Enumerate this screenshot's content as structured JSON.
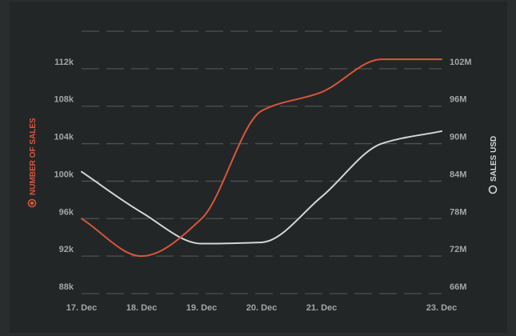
{
  "colors": {
    "background": "#232627",
    "outer": "#2a2d2e",
    "grid": "#4d5152",
    "tick_text": "#a3a6a7",
    "sales_count": "#d9553b",
    "sales_usd": "#d5d5d5"
  },
  "chart_data": {
    "type": "line",
    "x_tick_labels": [
      "17. Dec",
      "18. Dec",
      "19. Dec",
      "20. Dec",
      "21. Dec",
      "23. Dec"
    ],
    "x_tick_days": [
      0,
      1,
      2,
      3,
      4,
      6
    ],
    "y_left": {
      "title": "NUMBER OF SALES",
      "ticks": [
        "88k",
        "92k",
        "96k",
        "100k",
        "104k",
        "108k",
        "112k"
      ],
      "tick_values": [
        88000,
        92000,
        96000,
        100000,
        104000,
        108000,
        112000
      ],
      "range": [
        88000,
        116000
      ]
    },
    "y_right": {
      "title": "SALES USD",
      "ticks": [
        "66M",
        "72M",
        "78M",
        "84M",
        "90M",
        "96M",
        "102M"
      ],
      "tick_values": [
        66000000,
        72000000,
        78000000,
        84000000,
        90000000,
        96000000,
        102000000
      ],
      "range": [
        66000000,
        108000000
      ]
    },
    "grid": true,
    "legend_placement": "left and right axis titles",
    "series": [
      {
        "name": "NUMBER OF SALES",
        "axis": "left",
        "color": "#d9553b",
        "points": [
          [
            0,
            96000
          ],
          [
            1,
            92000
          ],
          [
            2,
            96000
          ],
          [
            3,
            107500
          ],
          [
            4,
            109500
          ],
          [
            5,
            113000
          ],
          [
            6,
            113000
          ]
        ]
      },
      {
        "name": "SALES USD",
        "axis": "right",
        "color": "#d5d5d5",
        "points": [
          [
            0,
            85500000
          ],
          [
            1,
            79000000
          ],
          [
            2,
            74000000
          ],
          [
            3,
            74200000
          ],
          [
            4,
            81500000
          ],
          [
            5,
            90000000
          ],
          [
            6,
            92000000
          ]
        ]
      }
    ]
  }
}
